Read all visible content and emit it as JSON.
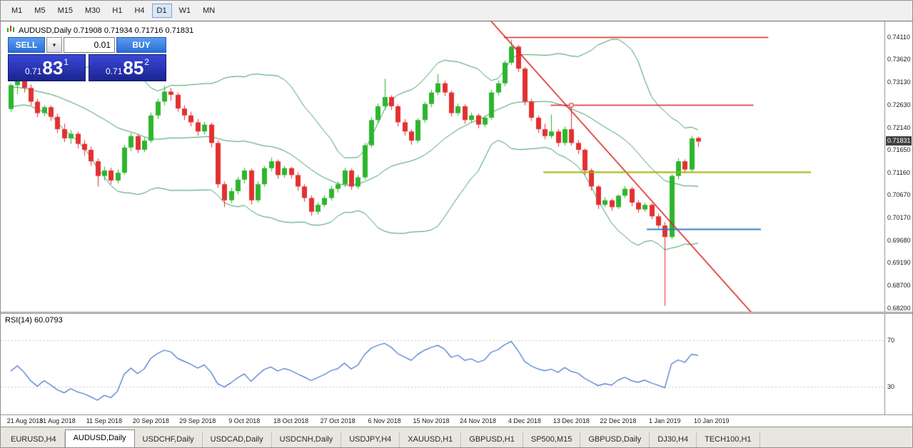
{
  "toolbar": {
    "timeframes": [
      "M1",
      "M5",
      "M15",
      "M30",
      "H1",
      "H4",
      "D1",
      "W1",
      "MN"
    ],
    "active": "D1"
  },
  "chart_header": {
    "text": "AUDUSD,Daily  0.71908 0.71934 0.71716 0.71831"
  },
  "trade_panel": {
    "sell_label": "SELL",
    "buy_label": "BUY",
    "lot": "0.01",
    "sell_price": {
      "main": "0.71",
      "pips": "83",
      "sub": "1"
    },
    "buy_price": {
      "main": "0.71",
      "pips": "85",
      "sub": "2"
    }
  },
  "tabs": {
    "active_index": 1,
    "items": [
      "EURUSD,H4",
      "AUDUSD,Daily",
      "USDCHF,Daily",
      "USDCAD,Daily",
      "USDCNH,Daily",
      "USDJPY,H4",
      "XAUUSD,H1",
      "GBPUSD,H1",
      "SP500,M15",
      "GBPUSD,Daily",
      "DJ30,H4",
      "TECH100,H1"
    ]
  },
  "chart_data": [
    {
      "type": "candlestick",
      "symbol": "AUDUSD",
      "timeframe": "Daily",
      "ohlc_display": {
        "open": "0.71908",
        "high": "0.71934",
        "low": "0.71716",
        "close": "0.71831"
      },
      "current_price": "0.71831",
      "ylim": [
        0.6812,
        0.7445
      ],
      "colors": {
        "up": "#2db52d",
        "down": "#e23030",
        "bollinger": "#3a9a5f",
        "badge_bg": "#404040"
      },
      "price_ticks": [
        "0.74110",
        "0.73620",
        "0.73130",
        "0.72630",
        "0.72140",
        "0.71650",
        "0.71160",
        "0.70670",
        "0.70170",
        "0.69680",
        "0.69190",
        "0.68700",
        "0.68200"
      ],
      "date_ticks": [
        {
          "label": "21 Aug 2018",
          "bar": 0
        },
        {
          "label": "31 Aug 2018",
          "bar": 7
        },
        {
          "label": "11 Sep 2018",
          "bar": 14
        },
        {
          "label": "20 Sep 2018",
          "bar": 21
        },
        {
          "label": "29 Sep 2018",
          "bar": 28
        },
        {
          "label": "9 Oct 2018",
          "bar": 35
        },
        {
          "label": "18 Oct 2018",
          "bar": 42
        },
        {
          "label": "27 Oct 2018",
          "bar": 49
        },
        {
          "label": "6 Nov 2018",
          "bar": 56
        },
        {
          "label": "15 Nov 2018",
          "bar": 63
        },
        {
          "label": "24 Nov 2018",
          "bar": 70
        },
        {
          "label": "4 Dec 2018",
          "bar": 77
        },
        {
          "label": "13 Dec 2018",
          "bar": 84
        },
        {
          "label": "22 Dec 2018",
          "bar": 91
        },
        {
          "label": "1 Jan 2019",
          "bar": 98
        },
        {
          "label": "10 Jan 2019",
          "bar": 105
        }
      ],
      "indicators": {
        "bollinger": {
          "period": 20,
          "deviation": 2
        }
      },
      "overlays": [
        {
          "kind": "trend",
          "x1_bar": 72,
          "p1": 0.7445,
          "x2_bar": 111,
          "p2": 0.681,
          "color": "#dd2222",
          "width": 1.6
        },
        {
          "kind": "hline",
          "price": 0.7411,
          "from_bar": 73.9,
          "to_bar": 113.5,
          "color": "#dd2222",
          "width": 1.6
        },
        {
          "kind": "hline",
          "price": 0.7263,
          "from_bar": 80.9,
          "to_bar": 111.3,
          "color": "#dd2222",
          "width": 1.6,
          "marker_bar": 84
        },
        {
          "kind": "hline",
          "price": 0.7117,
          "from_bar": 79.8,
          "to_bar": 119.9,
          "color": "#9fb400",
          "width": 2
        },
        {
          "kind": "hline",
          "price": 0.6992,
          "from_bar": 95.3,
          "to_bar": 112.4,
          "color": "#2e7fc1",
          "width": 2
        }
      ],
      "prehistory_closes": [
        0.7352,
        0.7344,
        0.7338,
        0.733,
        0.7322,
        0.7316,
        0.731,
        0.7304,
        0.7312,
        0.7318,
        0.7308,
        0.73,
        0.7292,
        0.7284,
        0.7278,
        0.7285,
        0.7292,
        0.728,
        0.7268,
        0.7262
      ],
      "candles": [
        [
          0.7254,
          0.731,
          0.7248,
          0.7306
        ],
        [
          0.7306,
          0.7322,
          0.7286,
          0.7318
        ],
        [
          0.7318,
          0.7321,
          0.729,
          0.73
        ],
        [
          0.73,
          0.7308,
          0.7262,
          0.727
        ],
        [
          0.727,
          0.7276,
          0.7236,
          0.7245
        ],
        [
          0.7245,
          0.7262,
          0.7238,
          0.7258
        ],
        [
          0.7258,
          0.7262,
          0.7228,
          0.7237
        ],
        [
          0.7237,
          0.7244,
          0.7202,
          0.721
        ],
        [
          0.721,
          0.7222,
          0.7182,
          0.719
        ],
        [
          0.719,
          0.7208,
          0.7178,
          0.72
        ],
        [
          0.72,
          0.7204,
          0.7168,
          0.7178
        ],
        [
          0.7178,
          0.7186,
          0.7152,
          0.7165
        ],
        [
          0.7165,
          0.7172,
          0.713,
          0.714
        ],
        [
          0.714,
          0.7146,
          0.7085,
          0.7108
        ],
        [
          0.7108,
          0.7128,
          0.7098,
          0.712
        ],
        [
          0.712,
          0.7126,
          0.709,
          0.7098
        ],
        [
          0.7098,
          0.7122,
          0.7092,
          0.7115
        ],
        [
          0.7115,
          0.7176,
          0.711,
          0.717
        ],
        [
          0.717,
          0.7202,
          0.7162,
          0.7195
        ],
        [
          0.7195,
          0.72,
          0.7158,
          0.7165
        ],
        [
          0.7165,
          0.7192,
          0.716,
          0.7185
        ],
        [
          0.7185,
          0.7246,
          0.718,
          0.724
        ],
        [
          0.724,
          0.7276,
          0.7232,
          0.727
        ],
        [
          0.727,
          0.7305,
          0.7262,
          0.7292
        ],
        [
          0.7292,
          0.73,
          0.7272,
          0.7285
        ],
        [
          0.7285,
          0.729,
          0.7248,
          0.7255
        ],
        [
          0.7255,
          0.7262,
          0.723,
          0.724
        ],
        [
          0.724,
          0.7248,
          0.7216,
          0.7225
        ],
        [
          0.7225,
          0.7232,
          0.7196,
          0.7205
        ],
        [
          0.7205,
          0.7226,
          0.7198,
          0.722
        ],
        [
          0.722,
          0.7224,
          0.717,
          0.718
        ],
        [
          0.718,
          0.7186,
          0.7082,
          0.709
        ],
        [
          0.709,
          0.7096,
          0.704,
          0.7055
        ],
        [
          0.7055,
          0.7082,
          0.7048,
          0.7075
        ],
        [
          0.7075,
          0.7106,
          0.7068,
          0.71
        ],
        [
          0.71,
          0.7126,
          0.7092,
          0.712
        ],
        [
          0.712,
          0.7124,
          0.7046,
          0.7055
        ],
        [
          0.7055,
          0.7096,
          0.705,
          0.709
        ],
        [
          0.709,
          0.713,
          0.7084,
          0.7125
        ],
        [
          0.7125,
          0.7148,
          0.7118,
          0.714
        ],
        [
          0.714,
          0.7144,
          0.7102,
          0.711
        ],
        [
          0.711,
          0.713,
          0.7104,
          0.7125
        ],
        [
          0.7125,
          0.7128,
          0.7102,
          0.711
        ],
        [
          0.711,
          0.7116,
          0.7076,
          0.7085
        ],
        [
          0.7085,
          0.709,
          0.7052,
          0.706
        ],
        [
          0.706,
          0.7066,
          0.7021,
          0.703
        ],
        [
          0.703,
          0.705,
          0.7024,
          0.7045
        ],
        [
          0.7045,
          0.7066,
          0.704,
          0.706
        ],
        [
          0.706,
          0.7086,
          0.7054,
          0.708
        ],
        [
          0.708,
          0.7096,
          0.7072,
          0.709
        ],
        [
          0.709,
          0.7126,
          0.7084,
          0.712
        ],
        [
          0.712,
          0.7124,
          0.7078,
          0.7085
        ],
        [
          0.7085,
          0.711,
          0.708,
          0.7105
        ],
        [
          0.7105,
          0.718,
          0.71,
          0.7175
        ],
        [
          0.7175,
          0.7236,
          0.717,
          0.723
        ],
        [
          0.723,
          0.7266,
          0.7224,
          0.726
        ],
        [
          0.726,
          0.732,
          0.7252,
          0.728
        ],
        [
          0.728,
          0.7284,
          0.7252,
          0.726
        ],
        [
          0.726,
          0.7264,
          0.7216,
          0.7225
        ],
        [
          0.7225,
          0.7232,
          0.7196,
          0.7205
        ],
        [
          0.7205,
          0.721,
          0.7176,
          0.7185
        ],
        [
          0.7185,
          0.7234,
          0.718,
          0.723
        ],
        [
          0.723,
          0.727,
          0.7224,
          0.7265
        ],
        [
          0.7265,
          0.7296,
          0.7258,
          0.729
        ],
        [
          0.729,
          0.733,
          0.7284,
          0.731
        ],
        [
          0.731,
          0.7316,
          0.7282,
          0.729
        ],
        [
          0.729,
          0.7294,
          0.7238,
          0.7245
        ],
        [
          0.7245,
          0.7266,
          0.724,
          0.726
        ],
        [
          0.726,
          0.7264,
          0.7222,
          0.723
        ],
        [
          0.723,
          0.7246,
          0.7224,
          0.724
        ],
        [
          0.724,
          0.7244,
          0.7212,
          0.722
        ],
        [
          0.722,
          0.724,
          0.7214,
          0.7235
        ],
        [
          0.7235,
          0.7296,
          0.723,
          0.729
        ],
        [
          0.729,
          0.7316,
          0.7284,
          0.731
        ],
        [
          0.731,
          0.736,
          0.7304,
          0.7355
        ],
        [
          0.7355,
          0.7405,
          0.735,
          0.739
        ],
        [
          0.739,
          0.7394,
          0.7335,
          0.7342
        ],
        [
          0.7342,
          0.7346,
          0.7262,
          0.727
        ],
        [
          0.727,
          0.7276,
          0.7228,
          0.7235
        ],
        [
          0.7235,
          0.724,
          0.7202,
          0.721
        ],
        [
          0.721,
          0.7222,
          0.7188,
          0.7195
        ],
        [
          0.7195,
          0.7242,
          0.719,
          0.7205
        ],
        [
          0.7205,
          0.721,
          0.7172,
          0.718
        ],
        [
          0.718,
          0.7216,
          0.7174,
          0.721
        ],
        [
          0.721,
          0.7263,
          0.7174,
          0.718
        ],
        [
          0.718,
          0.7186,
          0.7156,
          0.7165
        ],
        [
          0.7165,
          0.7168,
          0.711,
          0.712
        ],
        [
          0.712,
          0.7124,
          0.7076,
          0.7085
        ],
        [
          0.7085,
          0.7088,
          0.7036,
          0.7045
        ],
        [
          0.7045,
          0.7062,
          0.704,
          0.7055
        ],
        [
          0.7055,
          0.7058,
          0.7032,
          0.704
        ],
        [
          0.704,
          0.7068,
          0.7036,
          0.7065
        ],
        [
          0.7065,
          0.7086,
          0.706,
          0.708
        ],
        [
          0.708,
          0.7084,
          0.7042,
          0.705
        ],
        [
          0.705,
          0.7055,
          0.7028,
          0.7035
        ],
        [
          0.7035,
          0.705,
          0.703,
          0.7045
        ],
        [
          0.7045,
          0.7048,
          0.7014,
          0.702
        ],
        [
          0.702,
          0.7026,
          0.6994,
          0.7
        ],
        [
          0.7,
          0.7008,
          0.6825,
          0.6975
        ],
        [
          0.6975,
          0.7112,
          0.697,
          0.7108
        ],
        [
          0.7108,
          0.7147,
          0.71,
          0.714
        ],
        [
          0.714,
          0.7144,
          0.7114,
          0.7122
        ],
        [
          0.7122,
          0.7196,
          0.7118,
          0.719
        ],
        [
          0.71908,
          0.71934,
          0.71716,
          0.71831
        ]
      ]
    },
    {
      "type": "line",
      "name": "RSI",
      "label": "RSI(14) 60.0793",
      "period": 14,
      "value": 60.0793,
      "levels": [
        "70",
        "30"
      ],
      "ylim": [
        6,
        93
      ],
      "color": "#3f72c8"
    }
  ]
}
